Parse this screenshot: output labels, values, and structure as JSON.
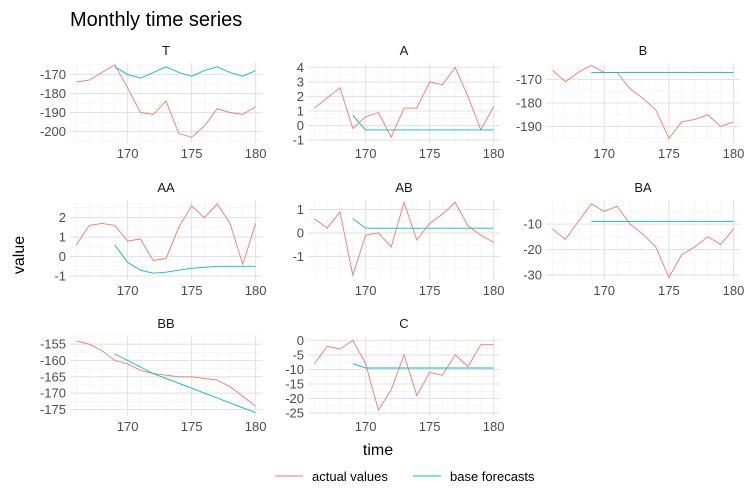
{
  "chart_data": {
    "type": "line",
    "title": "Monthly time series",
    "xlabel": "time",
    "ylabel": "value",
    "x": [
      166,
      167,
      168,
      169,
      170,
      171,
      172,
      173,
      174,
      175,
      176,
      177,
      178,
      179,
      180
    ],
    "legend": {
      "position": "bottom",
      "entries": [
        {
          "label": "actual values",
          "color": "#F8766D"
        },
        {
          "label": "base forecasts",
          "color": "#00BFC4"
        }
      ]
    },
    "panels": [
      {
        "name": "T",
        "xlim": [
          165.5,
          180.5
        ],
        "xticks": [
          170,
          175,
          180
        ],
        "ylim": [
          -206,
          -164
        ],
        "yticks": [
          -170,
          -180,
          -190,
          -200
        ],
        "actual": [
          -174,
          -173,
          -169,
          -165,
          -177,
          -190,
          -191,
          -184,
          -201,
          -203,
          -197,
          -188,
          -190,
          -191,
          -187
        ],
        "forecast": {
          "start": 169,
          "values": [
            -166,
            -170,
            -172,
            -169,
            -166,
            -169,
            -171,
            -168,
            -166,
            -169,
            -171,
            -168
          ]
        }
      },
      {
        "name": "A",
        "xlim": [
          165.5,
          180.5
        ],
        "xticks": [
          170,
          175,
          180
        ],
        "ylim": [
          -1.2,
          4.3
        ],
        "yticks": [
          4,
          3,
          2,
          1,
          0,
          -1
        ],
        "actual": [
          1.2,
          1.9,
          2.6,
          -0.2,
          0.6,
          0.9,
          -0.8,
          1.2,
          1.2,
          3.0,
          2.8,
          4.0,
          2.0,
          -0.3,
          1.3
        ],
        "forecast": {
          "start": 169,
          "values": [
            0.7,
            -0.3,
            -0.3,
            -0.3,
            -0.3,
            -0.3,
            -0.3,
            -0.3,
            -0.3,
            -0.3,
            -0.3,
            -0.3
          ]
        }
      },
      {
        "name": "B",
        "xlim": [
          165.5,
          180.5
        ],
        "xticks": [
          170,
          175,
          180
        ],
        "ylim": [
          -197,
          -163
        ],
        "yticks": [
          -170,
          -180,
          -190
        ],
        "actual": [
          -166,
          -171,
          -167,
          -164,
          -167,
          -167,
          -174,
          -178,
          -183,
          -195,
          -188,
          -187,
          -185,
          -190,
          -188
        ],
        "forecast": {
          "start": 169,
          "values": [
            -167,
            -167,
            -167,
            -167,
            -167,
            -167,
            -167,
            -167,
            -167,
            -167,
            -167,
            -167
          ]
        }
      },
      {
        "name": "AA",
        "xlim": [
          165.5,
          180.5
        ],
        "xticks": [
          170,
          175,
          180
        ],
        "ylim": [
          -1.2,
          2.9
        ],
        "yticks": [
          2,
          1,
          0,
          -1
        ],
        "actual": [
          0.6,
          1.6,
          1.7,
          1.6,
          0.8,
          0.9,
          -0.2,
          -0.1,
          1.5,
          2.6,
          2.0,
          2.7,
          1.7,
          -0.4,
          1.7
        ],
        "forecast": {
          "start": 169,
          "values": [
            0.6,
            -0.3,
            -0.7,
            -0.85,
            -0.8,
            -0.7,
            -0.6,
            -0.55,
            -0.5,
            -0.5,
            -0.5,
            -0.5
          ]
        }
      },
      {
        "name": "AB",
        "xlim": [
          165.5,
          180.5
        ],
        "xticks": [
          170,
          175,
          180
        ],
        "ylim": [
          -2.0,
          1.4
        ],
        "yticks": [
          1,
          0,
          -1
        ],
        "actual": [
          0.6,
          0.2,
          0.9,
          -1.8,
          -0.1,
          0.0,
          -0.6,
          1.3,
          -0.3,
          0.4,
          0.8,
          1.3,
          0.3,
          -0.1,
          -0.4
        ],
        "forecast": {
          "start": 169,
          "values": [
            0.6,
            0.2,
            0.2,
            0.2,
            0.2,
            0.2,
            0.2,
            0.2,
            0.2,
            0.2,
            0.2,
            0.2
          ]
        }
      },
      {
        "name": "BA",
        "xlim": [
          165.5,
          180.5
        ],
        "xticks": [
          170,
          175,
          180
        ],
        "ylim": [
          -32,
          -0.5
        ],
        "yticks": [
          -10,
          -20,
          -30
        ],
        "actual": [
          -12,
          -16,
          -9,
          -2,
          -5,
          -3,
          -10,
          -14,
          -19,
          -31,
          -22,
          -19,
          -15,
          -18,
          -12
        ],
        "forecast": {
          "start": 169,
          "values": [
            -9,
            -9,
            -9,
            -9,
            -9,
            -9,
            -9,
            -9,
            -9,
            -9,
            -9,
            -9
          ]
        }
      },
      {
        "name": "BB",
        "xlim": [
          165.5,
          180.5
        ],
        "xticks": [
          170,
          175,
          180
        ],
        "ylim": [
          -177,
          -152.5
        ],
        "yticks": [
          -155,
          -160,
          -165,
          -170,
          -175
        ],
        "actual": [
          -154,
          -155,
          -157,
          -160,
          -161,
          -163,
          -164,
          -164.5,
          -165,
          -165,
          -165.5,
          -166,
          -168,
          -171,
          -174
        ],
        "forecast": {
          "start": 169,
          "values": [
            -158,
            -160,
            -162,
            -164,
            -165.5,
            -167,
            -168.5,
            -170,
            -171.5,
            -173,
            -174.5,
            -176
          ]
        }
      },
      {
        "name": "C",
        "xlim": [
          165.5,
          180.5
        ],
        "xticks": [
          170,
          175,
          180
        ],
        "ylim": [
          -26,
          1.5
        ],
        "yticks": [
          0,
          -5,
          -10,
          -15,
          -20,
          -25
        ],
        "actual": [
          -8,
          -2,
          -3,
          0,
          -8,
          -24,
          -17,
          -5,
          -19,
          -11,
          -12,
          -5,
          -9,
          -1.5,
          -1.5
        ],
        "forecast": {
          "start": 169,
          "values": [
            -8,
            -9.5,
            -9.5,
            -9.5,
            -9.5,
            -9.5,
            -9.5,
            -9.5,
            -9.5,
            -9.5,
            -9.5,
            -9.5
          ]
        }
      }
    ]
  }
}
